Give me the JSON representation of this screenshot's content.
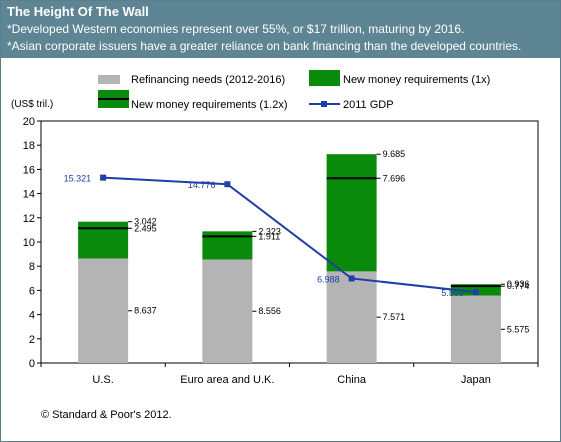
{
  "header": {
    "title": "The Height Of The Wall",
    "subtitle_1": "*Developed Western economies represent over 55%, or $17 trillion, maturing by 2016.",
    "subtitle_2": "*Asian corporate  issuers have a greater reliance on bank financing than the developed countries."
  },
  "footnote": "© Standard & Poor's 2012.",
  "colors": {
    "header_bg": "#5d8594",
    "refinancing": "#b4b4b4",
    "new_money": "#0a8a0a",
    "gdp_line": "#1f3ea8",
    "gdp_label": "#1f3ea8"
  },
  "chart_data": {
    "type": "bar",
    "stacked": true,
    "ylabel": "(US$ tril.)",
    "ylim": [
      0,
      20
    ],
    "yticks": [
      "0",
      "2",
      "4",
      "6",
      "8",
      "10",
      "12",
      "14",
      "16",
      "18",
      "20"
    ],
    "grid": false,
    "legend_position": "top",
    "categories": [
      "U.S.",
      "Euro area and U.K.",
      "China",
      "Japan"
    ],
    "series": [
      {
        "name": "Refinancing needs (2012-2016)",
        "type": "bar",
        "values": [
          8.637,
          8.556,
          7.571,
          5.575
        ],
        "labels": [
          "8.637",
          "8.556",
          "7.571",
          "5.575"
        ]
      },
      {
        "name": "New money requirements (1.2x)",
        "type": "marker",
        "values": [
          2.495,
          1.911,
          7.696,
          0.774
        ],
        "labels": [
          "2.495",
          "1.911",
          "7.696",
          "0.774"
        ]
      },
      {
        "name": "New money requirements (1x)",
        "type": "bar",
        "values": [
          3.042,
          2.323,
          9.685,
          0.936
        ],
        "labels": [
          "3.042",
          "2.323",
          "9.685",
          "0.936"
        ]
      },
      {
        "name": "2011 GDP",
        "type": "line",
        "values": [
          15.321,
          14.776,
          6.988,
          5.855
        ],
        "labels": [
          "15.321",
          "14.776",
          "6.988",
          "5.855"
        ]
      }
    ]
  }
}
